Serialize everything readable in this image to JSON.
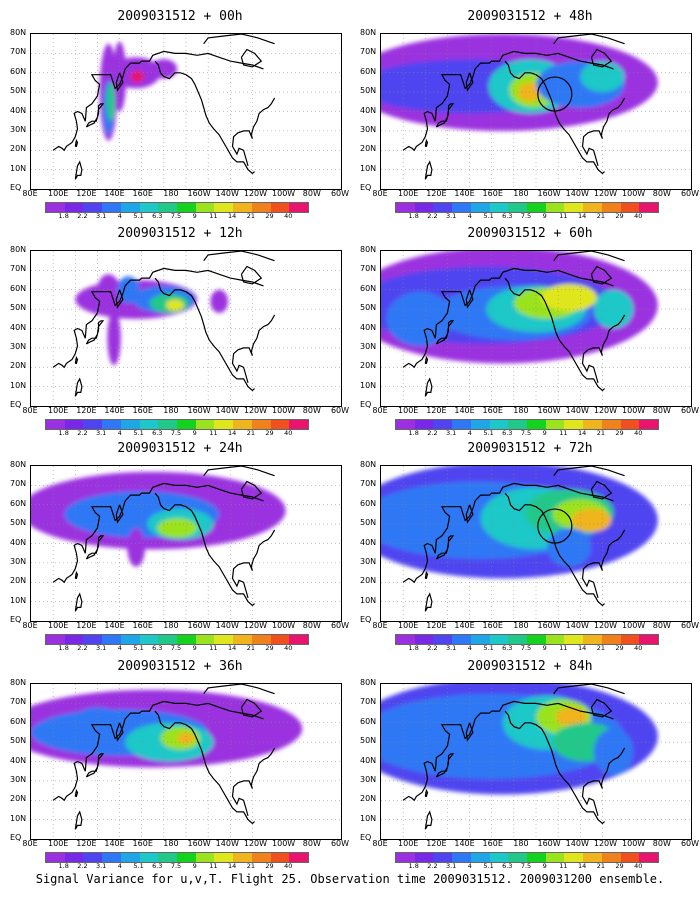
{
  "panels": [
    {
      "title": "2009031512 + 00h",
      "field": "f00"
    },
    {
      "title": "2009031512 + 48h",
      "field": "f48",
      "circle": true
    },
    {
      "title": "2009031512 + 12h",
      "field": "f12"
    },
    {
      "title": "2009031512 + 60h",
      "field": "f60"
    },
    {
      "title": "2009031512 + 24h",
      "field": "f24"
    },
    {
      "title": "2009031512 + 72h",
      "field": "f72",
      "circle": true
    },
    {
      "title": "2009031512 + 36h",
      "field": "f36"
    },
    {
      "title": "2009031512 + 84h",
      "field": "f84"
    }
  ],
  "lat_labels": [
    "80N",
    "70N",
    "60N",
    "50N",
    "40N",
    "30N",
    "20N",
    "10N",
    "EQ"
  ],
  "lon_labels": [
    "80E",
    "100E",
    "120E",
    "140E",
    "160E",
    "180",
    "160W",
    "140W",
    "120W",
    "100W",
    "80W",
    "60W"
  ],
  "colorbar": {
    "labels": [
      "1.8",
      "2.2",
      "3.1",
      "4",
      "5.1",
      "6.3",
      "7.5",
      "9",
      "11",
      "14",
      "21",
      "29",
      "40"
    ],
    "colors": [
      "#9b30e0",
      "#7a28e8",
      "#4f44f0",
      "#2f78f5",
      "#1ea6e6",
      "#1ec8c8",
      "#22c88a",
      "#14d21e",
      "#9ae31e",
      "#e0e61e",
      "#f0b41e",
      "#f0821e",
      "#f0501e",
      "#e8146e"
    ]
  },
  "footer": "Signal Variance for u,v,T. Flight 25. Observation time 2009031512. 2009031200 ensemble."
}
